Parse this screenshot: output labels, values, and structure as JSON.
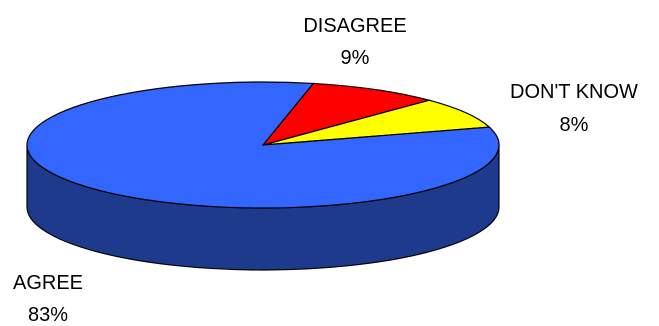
{
  "chart_data": {
    "type": "pie",
    "style": "3d",
    "title": "",
    "slices": [
      {
        "label": "AGREE",
        "value": 83,
        "display": "83%",
        "color": "#3366ff",
        "side_color": "#1e3a8c"
      },
      {
        "label": "DISAGREE",
        "value": 9,
        "display": "9%",
        "color": "#ff0000",
        "side_color": "#990000"
      },
      {
        "label": "DON'T KNOW",
        "value": 8,
        "display": "8%",
        "color": "#ffff00",
        "side_color": "#999900"
      }
    ],
    "legend": "none"
  }
}
